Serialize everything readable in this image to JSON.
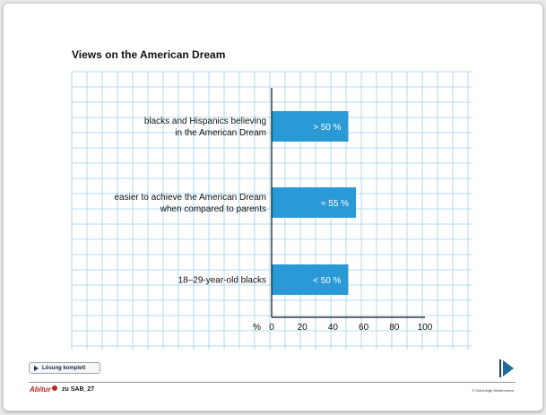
{
  "page": {
    "title": "Views on the American Dream",
    "solution_button": "Lösung komplett",
    "logo_text": "Abitur",
    "footer_ref": "zu SAB_27",
    "publisher": "© Schöningh Westermann"
  },
  "colors": {
    "bar": "#2a9ad6",
    "grid": "#9fd0ea",
    "axis": "#111111"
  },
  "chart_data": {
    "type": "bar",
    "orientation": "horizontal",
    "title": "Views on the American Dream",
    "categories": [
      [
        "blacks and Hispanics believing",
        "in the American Dream"
      ],
      [
        "easier to achieve the American Dream",
        "when compared to parents"
      ],
      [
        "18–29-year-old blacks"
      ]
    ],
    "values": [
      50,
      55,
      50
    ],
    "value_labels": [
      "> 50 %",
      "≈ 55 %",
      "< 50 %"
    ],
    "xlabel": "%",
    "xlim": [
      0,
      100
    ],
    "x_ticks": [
      0,
      20,
      40,
      60,
      80,
      100
    ],
    "grid": true
  }
}
